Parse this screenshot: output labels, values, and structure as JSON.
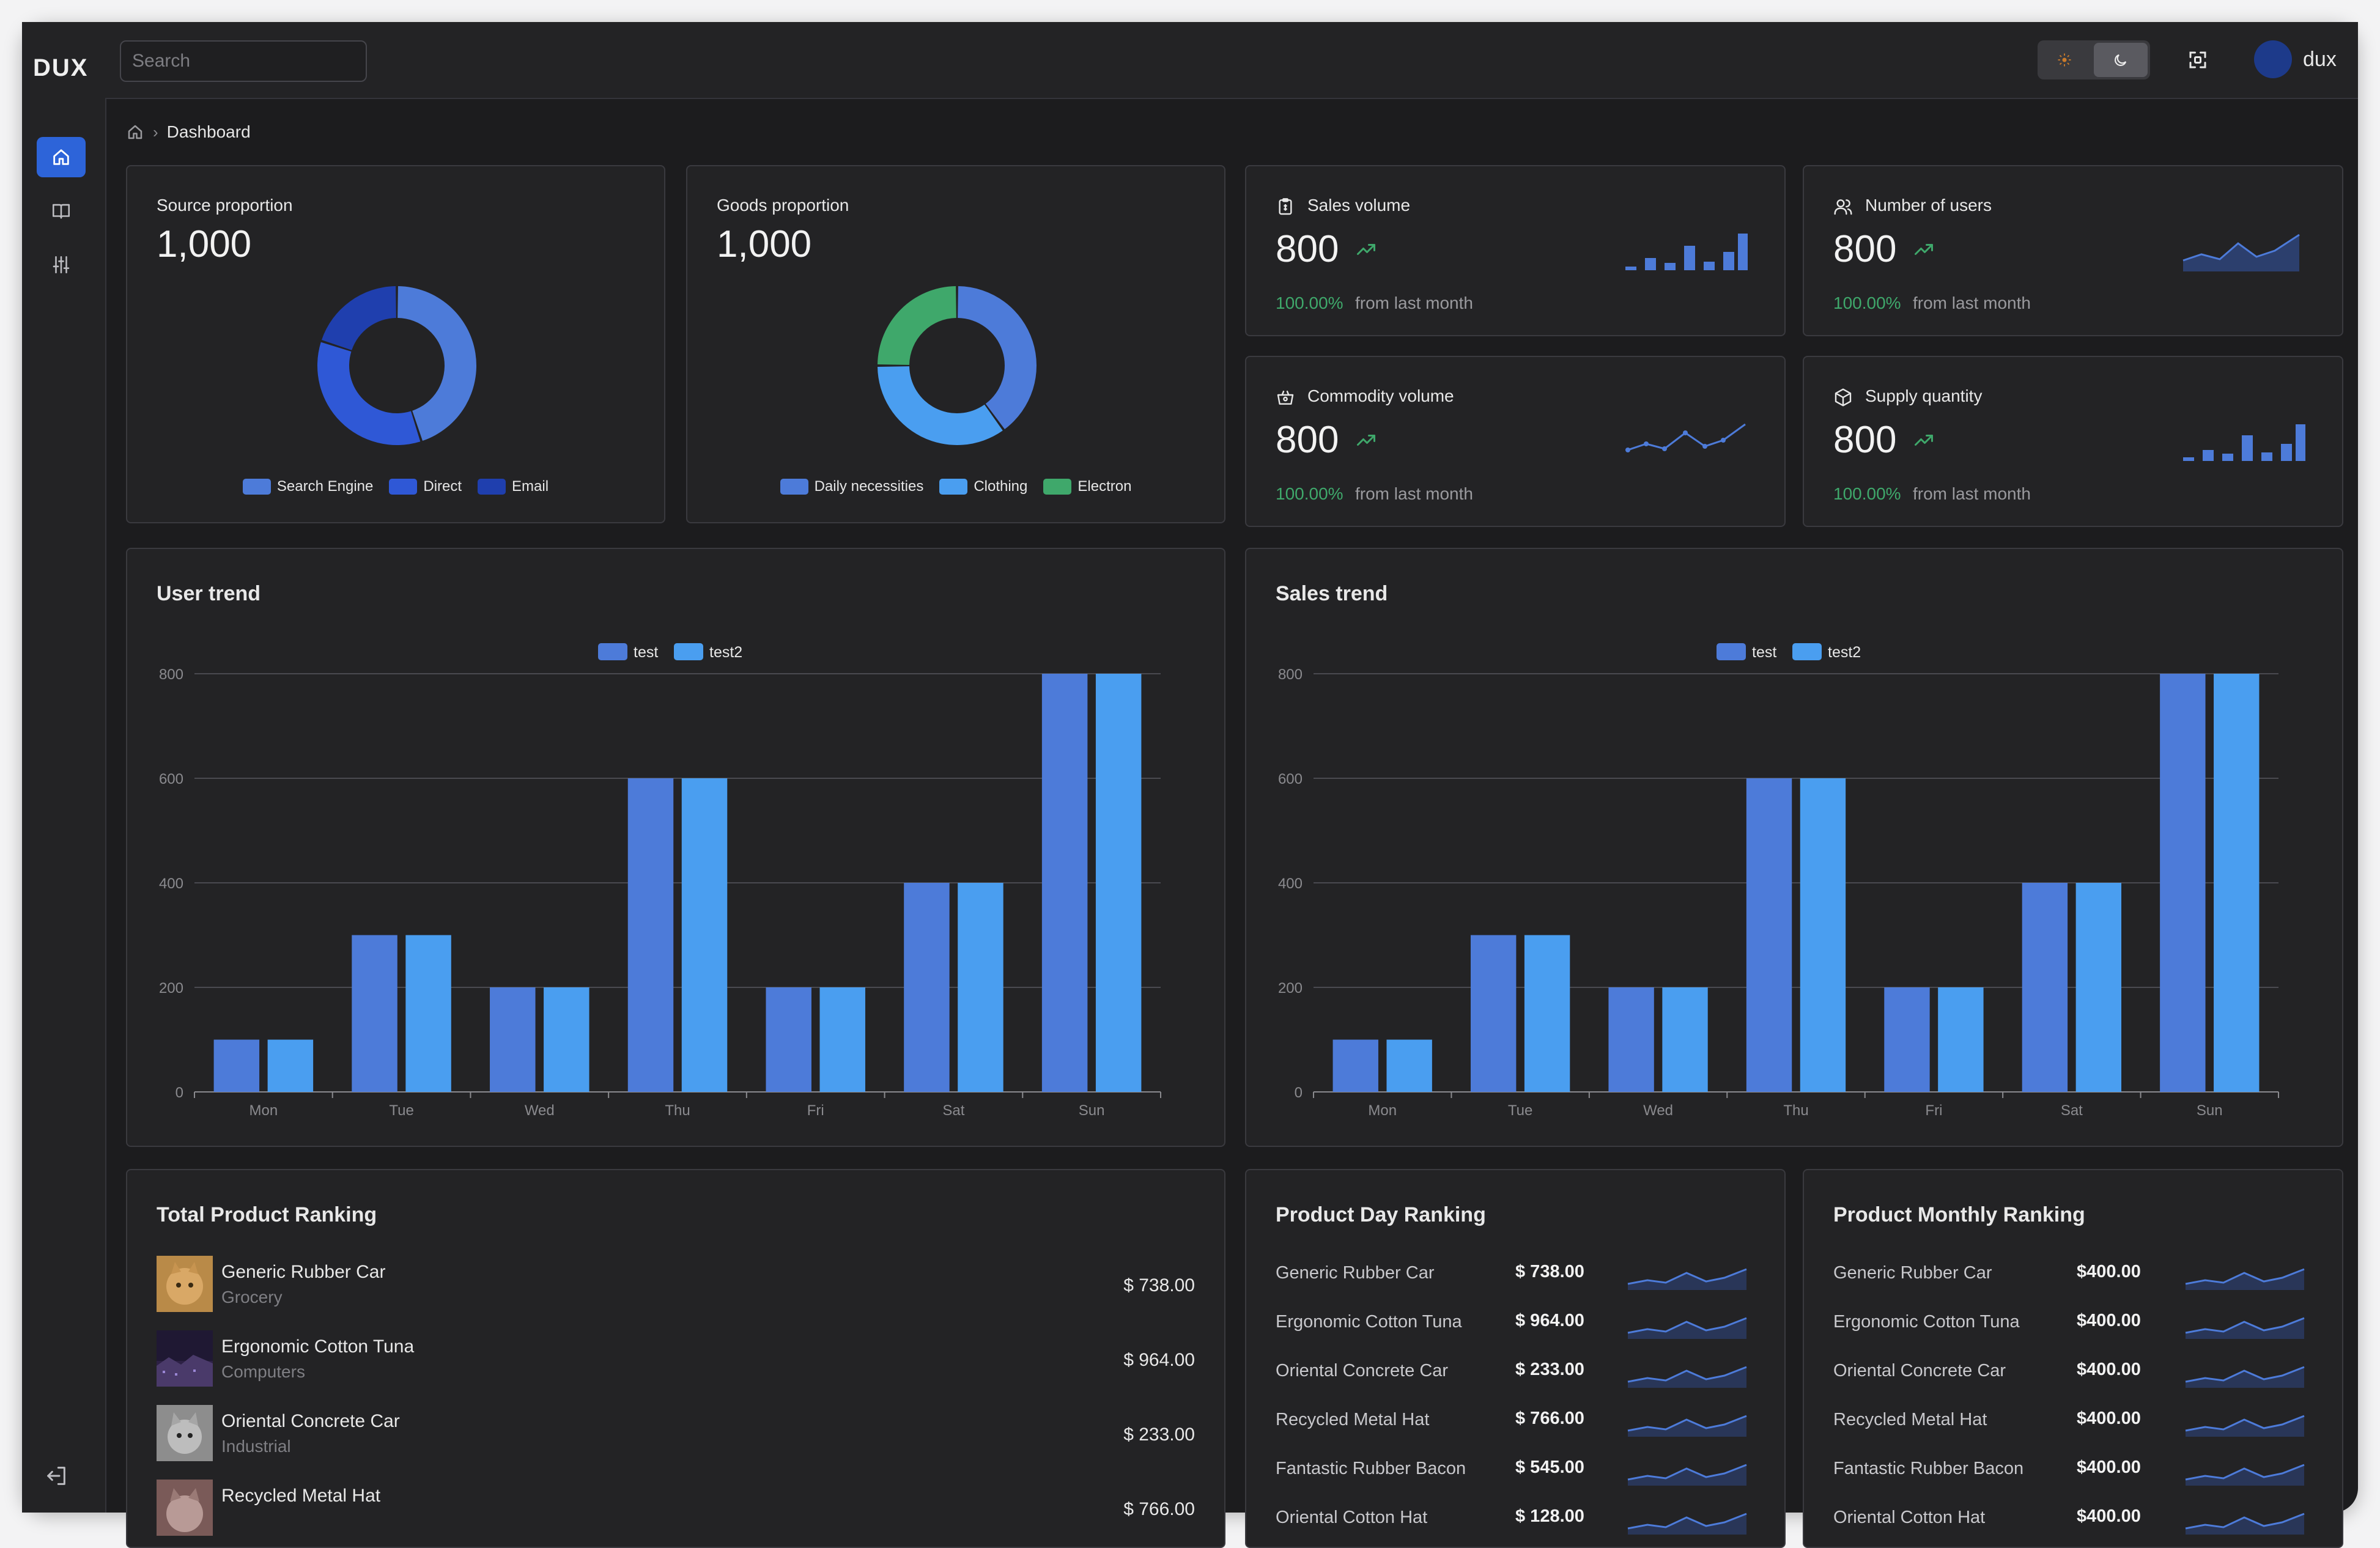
{
  "app": {
    "logo_text": "DUX",
    "username": "dux"
  },
  "search": {
    "placeholder": "Search"
  },
  "breadcrumb": {
    "current": "Dashboard"
  },
  "sidebar": {
    "items": [
      {
        "icon": "home-icon",
        "active": true
      },
      {
        "icon": "book-icon",
        "active": false
      },
      {
        "icon": "sliders-icon",
        "active": false
      }
    ]
  },
  "colors": {
    "blue1": "#4d7bd9",
    "blue2": "#4a9ef0",
    "blue3": "#2a4fd0",
    "green": "#3fa86b"
  },
  "source": {
    "title": "Source proportion",
    "total": "1,000",
    "legend": [
      "Search Engine",
      "Direct",
      "Email"
    ]
  },
  "goods": {
    "title": "Goods proportion",
    "total": "1,000",
    "legend": [
      "Daily necessities",
      "Clothing",
      "Electron"
    ]
  },
  "stats": [
    {
      "title": "Sales volume",
      "value": "800",
      "pct": "100.00%",
      "from": "from last month",
      "icon": "clipboard-icon",
      "mini": "bar"
    },
    {
      "title": "Number of users",
      "value": "800",
      "pct": "100.00%",
      "from": "from last month",
      "icon": "users-icon",
      "mini": "area"
    },
    {
      "title": "Commodity volume",
      "value": "800",
      "pct": "100.00%",
      "from": "from last month",
      "icon": "basket-icon",
      "mini": "line"
    },
    {
      "title": "Supply quantity",
      "value": "800",
      "pct": "100.00%",
      "from": "from last month",
      "icon": "box-icon",
      "mini": "bar"
    }
  ],
  "user_trend": {
    "title": "User trend"
  },
  "sales_trend": {
    "title": "Sales trend"
  },
  "chart_data": [
    {
      "type": "bar",
      "title": "User trend",
      "categories": [
        "Mon",
        "Tue",
        "Wed",
        "Thu",
        "Fri",
        "Sat",
        "Sun"
      ],
      "series": [
        {
          "name": "test",
          "values": [
            100,
            300,
            200,
            600,
            200,
            400,
            800
          ]
        },
        {
          "name": "test2",
          "values": [
            100,
            300,
            200,
            600,
            200,
            400,
            800
          ]
        }
      ],
      "ylim": [
        0,
        800
      ],
      "yticks": [
        0,
        200,
        400,
        600,
        800
      ],
      "grid": true,
      "legend": "top-center"
    },
    {
      "type": "bar",
      "title": "Sales trend",
      "categories": [
        "Mon",
        "Tue",
        "Wed",
        "Thu",
        "Fri",
        "Sat",
        "Sun"
      ],
      "series": [
        {
          "name": "test",
          "values": [
            100,
            300,
            200,
            600,
            200,
            400,
            800
          ]
        },
        {
          "name": "test2",
          "values": [
            100,
            300,
            200,
            600,
            200,
            400,
            800
          ]
        }
      ],
      "ylim": [
        0,
        800
      ],
      "yticks": [
        0,
        200,
        400,
        600,
        800
      ],
      "grid": true,
      "legend": "top-center"
    },
    {
      "type": "pie",
      "title": "Source proportion",
      "labels": [
        "Search Engine",
        "Direct",
        "Email"
      ],
      "values": [
        45,
        35,
        20
      ]
    },
    {
      "type": "pie",
      "title": "Goods proportion",
      "labels": [
        "Daily necessities",
        "Clothing",
        "Electron"
      ],
      "values": [
        40,
        35,
        25
      ]
    }
  ],
  "total_ranking": {
    "title": "Total Product Ranking",
    "rows": [
      {
        "name": "Generic Rubber Car",
        "category": "Grocery",
        "price": "$ 738.00",
        "thumb": "cat"
      },
      {
        "name": "Ergonomic Cotton Tuna",
        "category": "Computers",
        "price": "$ 964.00",
        "thumb": "city"
      },
      {
        "name": "Oriental Concrete Car",
        "category": "Industrial",
        "price": "$ 233.00",
        "thumb": "cat2"
      },
      {
        "name": "Recycled Metal Hat",
        "category": "",
        "price": "$ 766.00",
        "thumb": "cat3"
      }
    ]
  },
  "day_ranking": {
    "title": "Product Day Ranking",
    "rows": [
      {
        "name": "Generic Rubber Car",
        "price": "$ 738.00"
      },
      {
        "name": "Ergonomic Cotton Tuna",
        "price": "$ 964.00"
      },
      {
        "name": "Oriental Concrete Car",
        "price": "$ 233.00"
      },
      {
        "name": "Recycled Metal Hat",
        "price": "$ 766.00"
      },
      {
        "name": "Fantastic Rubber Bacon",
        "price": "$ 545.00"
      },
      {
        "name": "Oriental Cotton Hat",
        "price": "$ 128.00"
      }
    ]
  },
  "monthly_ranking": {
    "title": "Product Monthly Ranking",
    "rows": [
      {
        "name": "Generic Rubber Car",
        "price": "$400.00"
      },
      {
        "name": "Ergonomic Cotton Tuna",
        "price": "$400.00"
      },
      {
        "name": "Oriental Concrete Car",
        "price": "$400.00"
      },
      {
        "name": "Recycled Metal Hat",
        "price": "$400.00"
      },
      {
        "name": "Fantastic Rubber Bacon",
        "price": "$400.00"
      },
      {
        "name": "Oriental Cotton Hat",
        "price": "$400.00"
      }
    ]
  }
}
